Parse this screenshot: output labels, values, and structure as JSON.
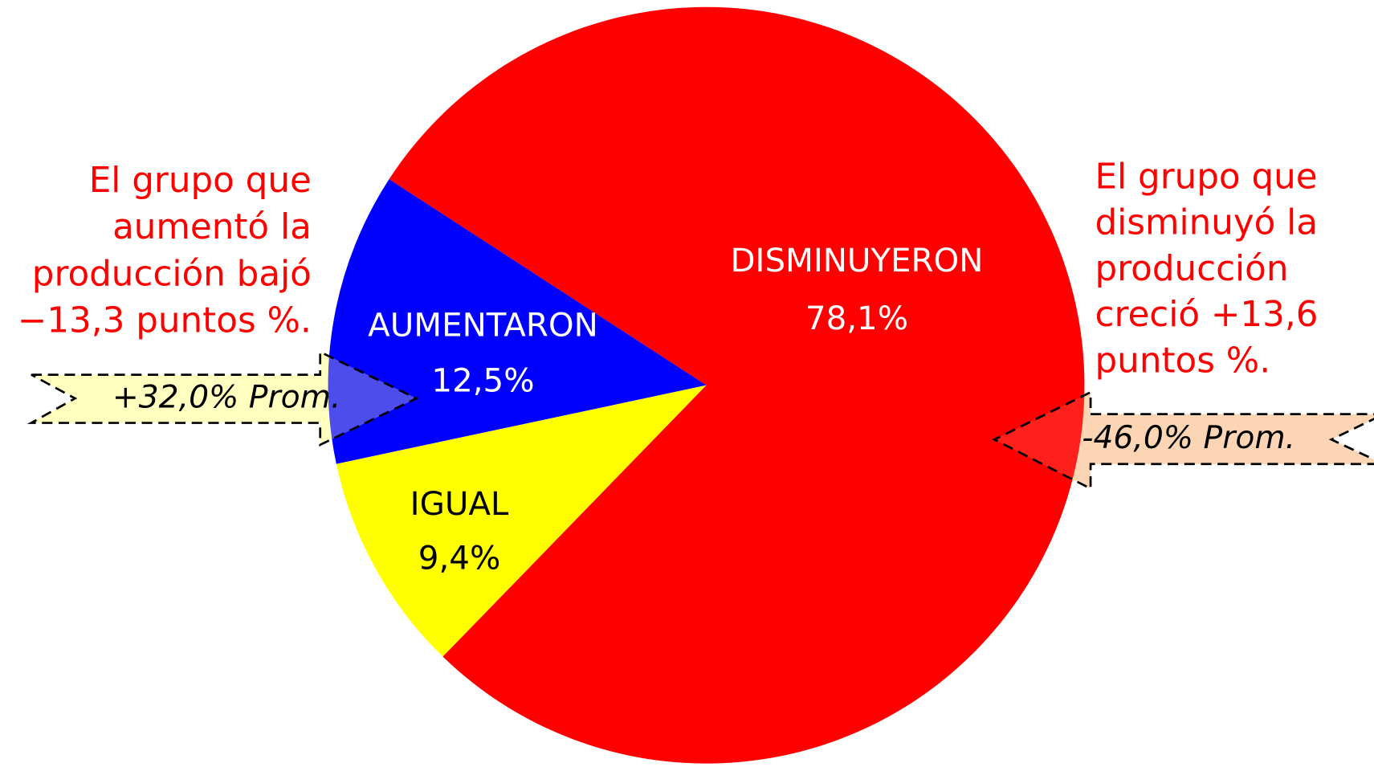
{
  "chart_data": {
    "type": "pie",
    "categories": [
      "DISMINUYERON",
      "IGUAL",
      "AUMENTARON"
    ],
    "values": [
      78.1,
      9.4,
      12.5
    ],
    "value_labels": [
      "78,1%",
      "9,4%",
      "12,5%"
    ],
    "colors": [
      "#ff0000",
      "#ffff00",
      "#0000ff"
    ],
    "annotations": {
      "left": [
        "El grupo que",
        "aumentó la",
        "producción bajó",
        "−13,3 puntos %."
      ],
      "right": [
        "El grupo que",
        "disminuyó la",
        "producción",
        "creció +13,6",
        "puntos %."
      ],
      "left_arrow": "+32,0% Prom.",
      "right_arrow": "-46,0% Prom."
    }
  }
}
